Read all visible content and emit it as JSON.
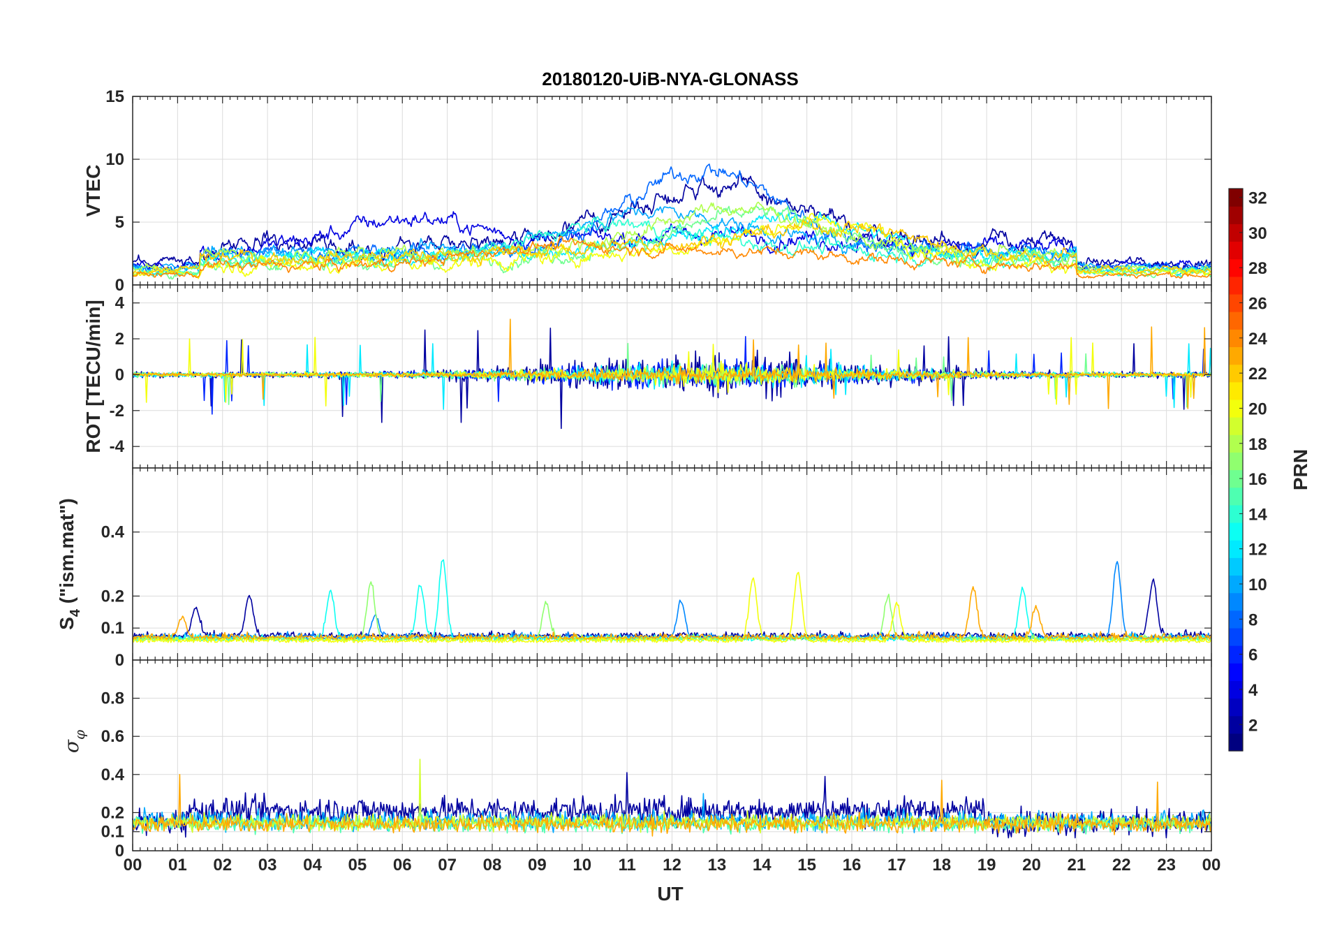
{
  "chart_data": {
    "type": "line",
    "title": "20180120-UiB-NYA-GLONASS",
    "xlabel": "UT",
    "x_tick_labels": [
      "00",
      "01",
      "02",
      "03",
      "04",
      "05",
      "06",
      "07",
      "08",
      "09",
      "10",
      "11",
      "12",
      "13",
      "14",
      "15",
      "16",
      "17",
      "18",
      "19",
      "20",
      "21",
      "22",
      "23",
      "00"
    ],
    "xlim_hours": [
      0,
      24
    ],
    "colorbar": {
      "label": "PRN",
      "range": [
        1,
        32
      ],
      "ticks": [
        2,
        4,
        6,
        8,
        10,
        12,
        14,
        16,
        18,
        20,
        22,
        24,
        26,
        28,
        30,
        32
      ],
      "tick_labels": [
        "2",
        "4",
        "6",
        "8",
        "10",
        "12",
        "14",
        "16",
        "18",
        "20",
        "22",
        "24",
        "26",
        "28",
        "30",
        "32"
      ],
      "colormap": "jet"
    },
    "panels": [
      {
        "id": "vtec",
        "ylabel": "VTEC",
        "ylim": [
          0,
          15
        ],
        "yticks": [
          0,
          5,
          10,
          15
        ],
        "ytick_labels": [
          "0",
          "5",
          "10",
          "15"
        ],
        "series": [
          {
            "prn": 2,
            "base": 3.2,
            "peak": 8.0,
            "peak_hour": 12.9,
            "noise": 0.35
          },
          {
            "prn": 4,
            "base": 2.8,
            "peak": 6.0,
            "peak_hour": 6.2,
            "noise": 0.3
          },
          {
            "prn": 8,
            "base": 2.5,
            "peak": 9.8,
            "peak_hour": 12.7,
            "noise": 0.3
          },
          {
            "prn": 10,
            "base": 2.6,
            "peak": 5.5,
            "peak_hour": 11.5,
            "noise": 0.25
          },
          {
            "prn": 12,
            "base": 2.2,
            "peak": 5.0,
            "peak_hour": 15.0,
            "noise": 0.25
          },
          {
            "prn": 14,
            "base": 2.0,
            "peak": 4.6,
            "peak_hour": 10.5,
            "noise": 0.25
          },
          {
            "prn": 16,
            "base": 1.8,
            "peak": 5.5,
            "peak_hour": 14.0,
            "noise": 0.25
          },
          {
            "prn": 18,
            "base": 2.4,
            "peak": 5.8,
            "peak_hour": 13.5,
            "noise": 0.25
          },
          {
            "prn": 20,
            "base": 1.6,
            "peak": 5.0,
            "peak_hour": 15.5,
            "noise": 0.25
          },
          {
            "prn": 22,
            "base": 2.2,
            "peak": 4.5,
            "peak_hour": 16.0,
            "noise": 0.25
          },
          {
            "prn": 24,
            "base": 1.5,
            "peak": 3.0,
            "peak_hour": 9.0,
            "noise": 0.2
          }
        ]
      },
      {
        "id": "rot",
        "ylabel": "ROT [TECU/min]",
        "ylim": [
          -5.2,
          5
        ],
        "yticks": [
          -4,
          -2,
          0,
          2,
          4
        ],
        "ytick_labels": [
          "-4",
          "-2",
          "0",
          "2",
          "4"
        ],
        "series": [
          {
            "prn": 2,
            "quiet_std": 0.12,
            "active_std": 0.9,
            "spike_max": 3.0,
            "spike_min": -3.1
          },
          {
            "prn": 6,
            "quiet_std": 0.1,
            "active_std": 0.6,
            "spike_max": 2.2,
            "spike_min": -2.4
          },
          {
            "prn": 12,
            "quiet_std": 0.1,
            "active_std": 0.5,
            "spike_max": 2.0,
            "spike_min": -2.0
          },
          {
            "prn": 16,
            "quiet_std": 0.1,
            "active_std": 0.45,
            "spike_max": 1.8,
            "spike_min": -2.4
          },
          {
            "prn": 20,
            "quiet_std": 0.08,
            "active_std": 0.4,
            "spike_max": 2.4,
            "spike_min": -1.8
          },
          {
            "prn": 23,
            "quiet_std": 0.07,
            "active_std": 0.3,
            "spike_max": 3.2,
            "spike_min": -2.2
          }
        ]
      },
      {
        "id": "s4",
        "ylabel_main": "S",
        "ylabel_sub": "4",
        "ylabel_rest": " (\"ism.mat\")",
        "ylim": [
          0,
          0.6
        ],
        "yticks": [
          0,
          0.1,
          0.2,
          0.4
        ],
        "ytick_labels": [
          "0",
          "0.1",
          "0.2",
          "0.4"
        ],
        "series": [
          {
            "prn": 2,
            "base": 0.07,
            "peaks": [
              [
                1.4,
                0.16
              ],
              [
                2.6,
                0.19
              ],
              [
                22.7,
                0.24
              ]
            ]
          },
          {
            "prn": 9,
            "base": 0.065,
            "peaks": [
              [
                5.4,
                0.13
              ],
              [
                12.2,
                0.18
              ],
              [
                21.9,
                0.3
              ]
            ]
          },
          {
            "prn": 13,
            "base": 0.06,
            "peaks": [
              [
                4.4,
                0.21
              ],
              [
                6.4,
                0.23
              ],
              [
                6.9,
                0.31
              ],
              [
                19.8,
                0.22
              ]
            ]
          },
          {
            "prn": 17,
            "base": 0.06,
            "peaks": [
              [
                5.3,
                0.24
              ],
              [
                9.2,
                0.17
              ],
              [
                16.8,
                0.19
              ]
            ]
          },
          {
            "prn": 20,
            "base": 0.055,
            "peaks": [
              [
                13.8,
                0.25
              ],
              [
                14.8,
                0.27
              ],
              [
                17.0,
                0.17
              ]
            ]
          },
          {
            "prn": 23,
            "base": 0.065,
            "peaks": [
              [
                1.1,
                0.13
              ],
              [
                18.7,
                0.22
              ],
              [
                20.1,
                0.16
              ]
            ]
          }
        ]
      },
      {
        "id": "sigphi",
        "ylabel_symbol": "σ",
        "ylabel_sub": "φ",
        "ylim": [
          0,
          1
        ],
        "yticks": [
          0,
          0.1,
          0.2,
          0.4,
          0.6,
          0.8
        ],
        "ytick_labels": [
          "0",
          "0.1",
          "0.2",
          "0.4",
          "0.6",
          "0.8"
        ],
        "series": [
          {
            "prn": 2,
            "base": 0.21,
            "noise": 0.05,
            "active_range": [
              1.2,
              19.0
            ],
            "spikes": [
              [
                11.0,
                0.41
              ],
              [
                15.4,
                0.39
              ]
            ]
          },
          {
            "prn": 10,
            "base": 0.16,
            "noise": 0.035,
            "spikes": [
              [
                12.7,
                0.3
              ]
            ]
          },
          {
            "prn": 15,
            "base": 0.14,
            "noise": 0.03,
            "spikes": []
          },
          {
            "prn": 19,
            "base": 0.15,
            "noise": 0.03,
            "spikes": [
              [
                6.4,
                0.48
              ]
            ]
          },
          {
            "prn": 23,
            "base": 0.14,
            "noise": 0.03,
            "spikes": [
              [
                1.05,
                0.4
              ],
              [
                18.0,
                0.37
              ],
              [
                22.8,
                0.36
              ]
            ]
          }
        ]
      }
    ]
  }
}
